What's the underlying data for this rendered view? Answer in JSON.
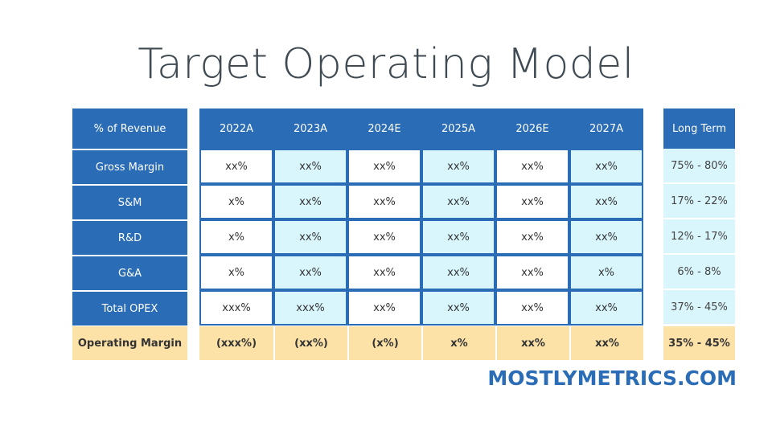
{
  "title": "Target Operating Model",
  "table": {
    "corner_label": "% of Revenue",
    "years": [
      "2022A",
      "2023A",
      "2024E",
      "2025A",
      "2026E",
      "2027A"
    ],
    "long_term_header": "Long Term",
    "rows": [
      {
        "label": "Gross Margin",
        "values": [
          "xx%",
          "xx%",
          "xx%",
          "xx%",
          "xx%",
          "xx%"
        ],
        "long_term": "75% - 80%"
      },
      {
        "label": "S&M",
        "values": [
          "x%",
          "xx%",
          "xx%",
          "xx%",
          "xx%",
          "xx%"
        ],
        "long_term": "17% - 22%"
      },
      {
        "label": "R&D",
        "values": [
          "x%",
          "xx%",
          "xx%",
          "xx%",
          "xx%",
          "xx%"
        ],
        "long_term": "12% - 17%"
      },
      {
        "label": "G&A",
        "values": [
          "x%",
          "xx%",
          "xx%",
          "xx%",
          "xx%",
          "x%"
        ],
        "long_term": "6% - 8%"
      },
      {
        "label": "Total OPEX",
        "values": [
          "xxx%",
          "xxx%",
          "xx%",
          "xx%",
          "xx%",
          "xx%"
        ],
        "long_term": "37% - 45%"
      }
    ],
    "footer_row": {
      "label": "Operating Margin",
      "values": [
        "(xxx%)",
        "(xx%)",
        "(x%)",
        "x%",
        "xx%",
        "xx%"
      ],
      "long_term": "35% - 45%"
    }
  },
  "brand": "MOSTLYMETRICS.COM",
  "colors": {
    "header_blue": "#2a6cb6",
    "light_cyan": "#d9f6fd",
    "operating_margin": "#fde2a8"
  }
}
